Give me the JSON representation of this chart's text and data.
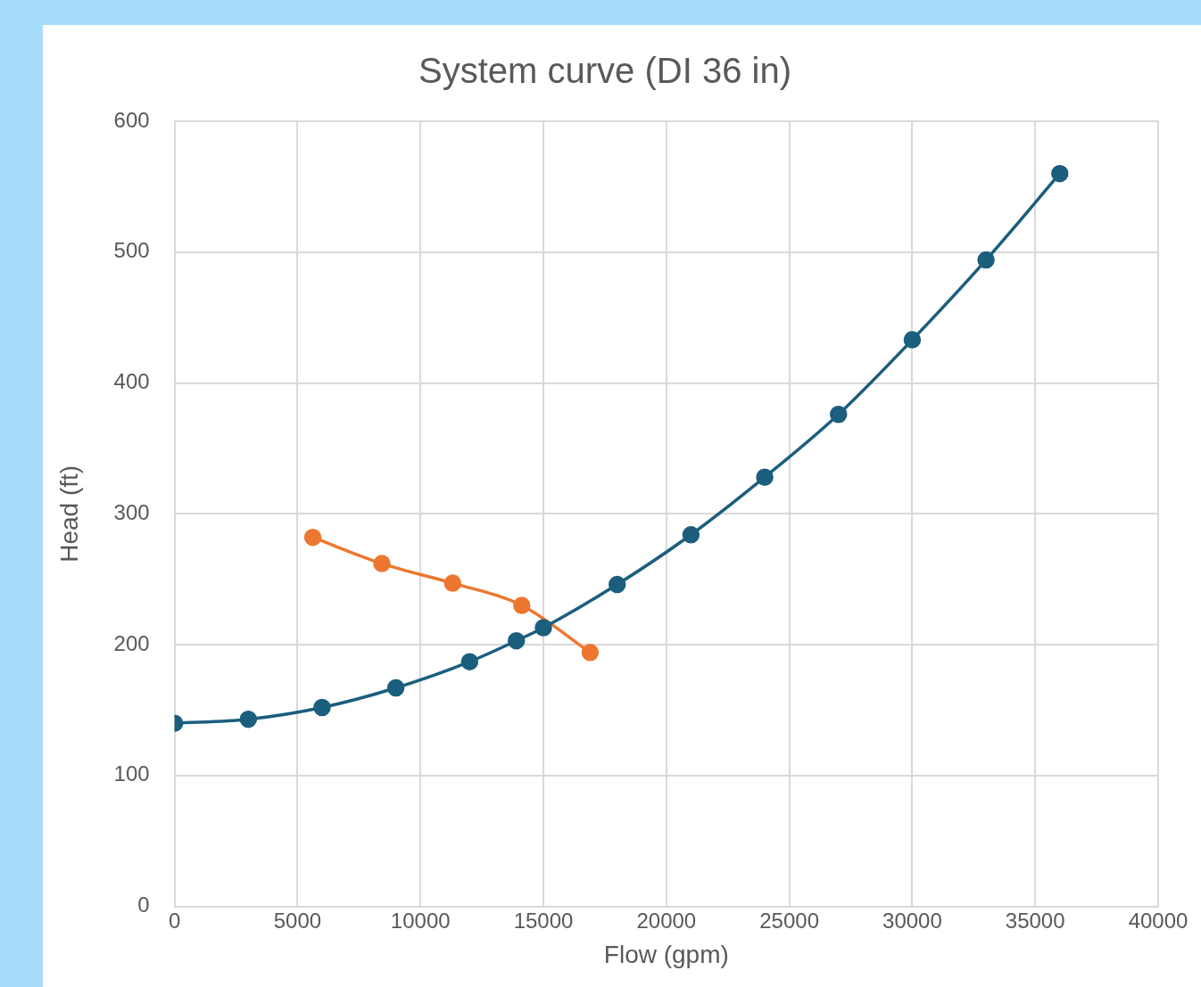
{
  "chart_data": {
    "type": "line",
    "title": "System curve (DI 36 in)",
    "xlabel": "Flow (gpm)",
    "ylabel": "Head (ft)",
    "series": [
      {
        "color": "#1b5e7e",
        "x": [
          0,
          3000,
          6000,
          9000,
          12000,
          13900,
          15000,
          18000,
          21000,
          24000,
          27000,
          30000,
          33000,
          36000
        ],
        "values": [
          140,
          143,
          152,
          167,
          187,
          203,
          213,
          246,
          284,
          328,
          376,
          433,
          494,
          560
        ]
      },
      {
        "color": "#ed7730",
        "x": [
          5620,
          8430,
          11310,
          14120,
          16900
        ],
        "values": [
          282,
          262,
          247,
          230,
          194
        ]
      }
    ],
    "xlim": [
      0,
      40000
    ],
    "xticks": [
      0,
      5000,
      10000,
      15000,
      20000,
      25000,
      30000,
      35000,
      40000
    ],
    "ylim": [
      0,
      600
    ],
    "yticks": [
      0,
      100,
      200,
      300,
      400,
      500,
      600
    ],
    "grid": true,
    "legend": false,
    "marker": "circle",
    "line_style": "solid"
  }
}
